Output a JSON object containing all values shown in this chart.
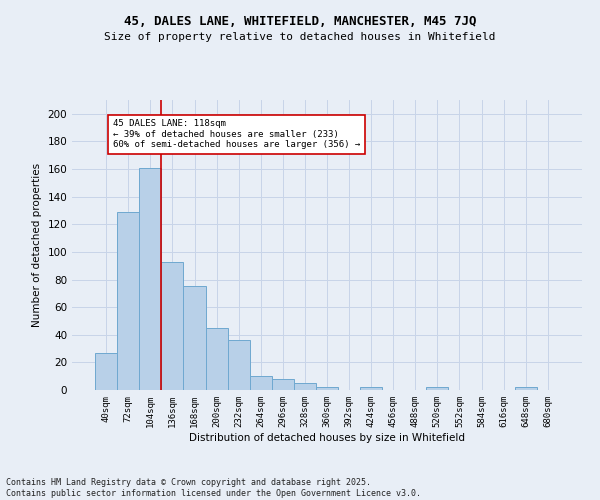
{
  "title1": "45, DALES LANE, WHITEFIELD, MANCHESTER, M45 7JQ",
  "title2": "Size of property relative to detached houses in Whitefield",
  "xlabel": "Distribution of detached houses by size in Whitefield",
  "ylabel": "Number of detached properties",
  "bins": [
    "40sqm",
    "72sqm",
    "104sqm",
    "136sqm",
    "168sqm",
    "200sqm",
    "232sqm",
    "264sqm",
    "296sqm",
    "328sqm",
    "360sqm",
    "392sqm",
    "424sqm",
    "456sqm",
    "488sqm",
    "520sqm",
    "552sqm",
    "584sqm",
    "616sqm",
    "648sqm",
    "680sqm"
  ],
  "values": [
    27,
    129,
    161,
    93,
    75,
    45,
    36,
    10,
    8,
    5,
    2,
    0,
    2,
    0,
    0,
    2,
    0,
    0,
    0,
    2,
    0
  ],
  "bar_color": "#b8d0e8",
  "bar_edge_color": "#6fa8d0",
  "bar_width": 1.0,
  "vline_x_idx": 2,
  "vline_color": "#cc0000",
  "annotation_line1": "45 DALES LANE: 118sqm",
  "annotation_line2": "← 39% of detached houses are smaller (233)",
  "annotation_line3": "60% of semi-detached houses are larger (356) →",
  "annotation_box_color": "#ffffff",
  "annotation_box_edgecolor": "#cc0000",
  "ylim": [
    0,
    210
  ],
  "yticks": [
    0,
    20,
    40,
    60,
    80,
    100,
    120,
    140,
    160,
    180,
    200
  ],
  "grid_color": "#c8d4e8",
  "footer1": "Contains HM Land Registry data © Crown copyright and database right 2025.",
  "footer2": "Contains public sector information licensed under the Open Government Licence v3.0.",
  "bg_color": "#e8eef6"
}
